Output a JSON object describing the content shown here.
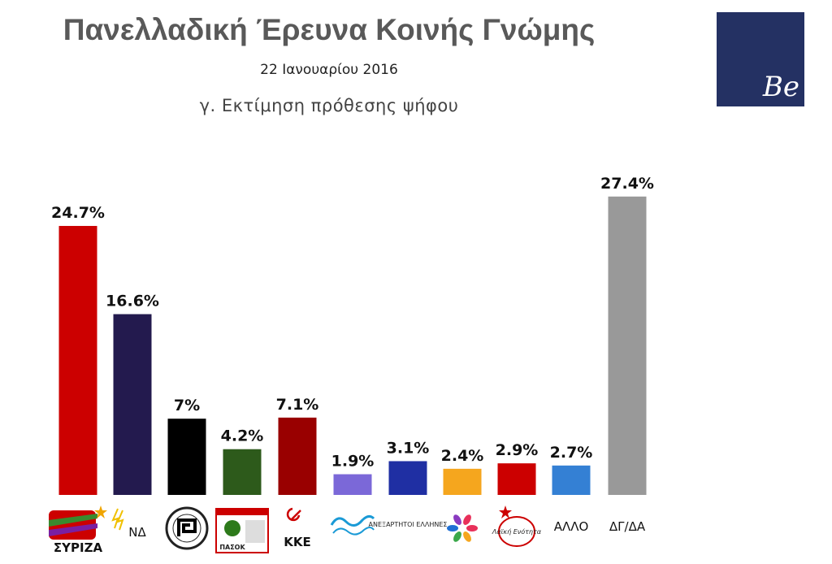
{
  "header": {
    "title": "Πανελλαδική Έρευνα Κοινής Γνώμης",
    "date": "22 Ιανουαρίου 2016",
    "subtitle": "γ. Εκτίμηση πρόθεσης ψήφου"
  },
  "logo": {
    "text": "Be",
    "color": "#243163"
  },
  "chart_data": {
    "type": "bar",
    "title": "γ. Εκτίμηση πρόθεσης ψήφου",
    "categories": [
      "ΣΥΡΙΖΑ",
      "ΝΔ",
      "Χρυσή Αυγή",
      "ΠΑΣΟΚ",
      "ΚΚΕ",
      "Το Ποτάμι",
      "ΑΝΕΛ",
      "Ένωση Κεντρώων",
      "Λαϊκή Ενότητα",
      "ΑΛΛΟ",
      "ΔΓ/ΔΑ"
    ],
    "values": [
      24.7,
      16.6,
      7,
      4.2,
      7.1,
      1.9,
      3.1,
      2.4,
      2.9,
      2.7,
      27.4
    ],
    "value_labels": [
      "24.7%",
      "16.6%",
      "7%",
      "4.2%",
      "7.1%",
      "1.9%",
      "3.1%",
      "2.4%",
      "2.9%",
      "2.7%",
      "27.4%"
    ],
    "colors": [
      "#cc0000",
      "#231a4e",
      "#000000",
      "#2d5a1b",
      "#990000",
      "#7b68d8",
      "#1f2fa3",
      "#f5a61e",
      "#cc0000",
      "#3480d4",
      "#999999"
    ],
    "printed_category_labels": {
      "ΣΥΡΙΖΑ": "ΣΥΡΙΖΑ",
      "ΝΔ": "ΝΔ",
      "ΠΑΣΟΚ": "ΠΑΣΟΚ",
      "ΚΚΕ": "ΚΚΕ",
      "ΑΛΛΟ": "ΑΛΛΟ",
      "ΔΓ/ΔΑ": "ΔΓ/ΔΑ",
      "Λαϊκή Ενότητα": "Λαϊκή Ενότητα",
      "ΑΝΕΛ": "ΑΝΕΞΑΡΤΗΤΟΙ ΕΛΛΗΝΕΣ"
    },
    "icons": [
      "syriza-logo-icon",
      "nd-logo-icon",
      "golden-dawn-logo-icon",
      "pasok-logo-icon",
      "kke-logo-icon",
      "potami-logo-icon",
      "anel-logo-icon",
      "enosi-kentroon-logo-icon",
      "laiki-enotita-logo-icon"
    ],
    "ylim": [
      0,
      30
    ],
    "grid": false,
    "legend": "none"
  }
}
